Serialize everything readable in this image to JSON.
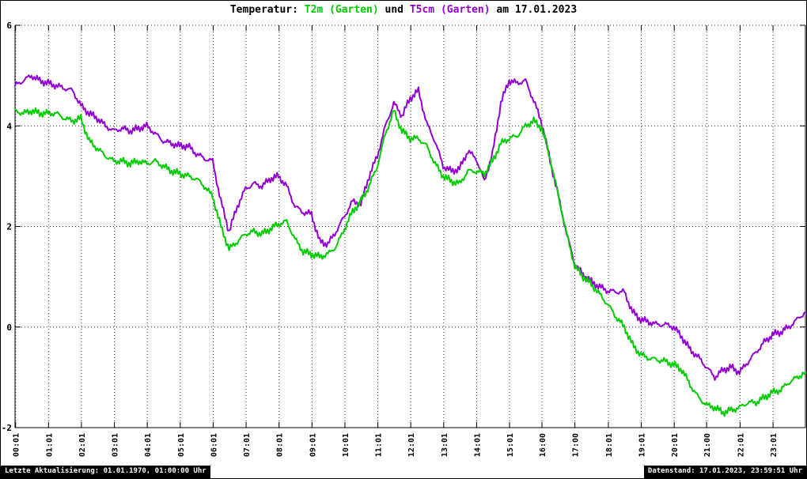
{
  "title": {
    "prefix": "Temperatur: ",
    "series1": "T2m (Garten)",
    "mid": " und ",
    "series2": "T5cm (Garten)",
    "suffix": " am 17.01.2023"
  },
  "footer": {
    "left": "Letzte Aktualisierung: 01.01.1970, 01:00:00 Uhr",
    "right": "Datenstand: 17.01.2023, 23:59:51 Uhr"
  },
  "colors": {
    "t2m": "#00cc00",
    "t5cm": "#9400d3",
    "axis": "#000000",
    "grid": "#333333",
    "background": "#ffffff"
  },
  "chart_data": {
    "type": "line",
    "title": "Temperatur: T2m (Garten) und T5cm (Garten) am 17.01.2023",
    "xlabel": "",
    "ylabel": "",
    "ylim": [
      -2,
      6
    ],
    "xlim_hours": [
      0,
      24
    ],
    "yticks": [
      -2,
      0,
      2,
      4,
      6
    ],
    "xtick_labels": [
      "00:01",
      "01:01",
      "02:01",
      "03:01",
      "04:01",
      "05:01",
      "06:01",
      "07:01",
      "08:01",
      "09:01",
      "10:01",
      "11:01",
      "12:01",
      "13:01",
      "14:01",
      "15:01",
      "16:00",
      "17:00",
      "18:01",
      "19:01",
      "20:01",
      "21:00",
      "22:01",
      "23:01"
    ],
    "grid": true,
    "legend_position": "in-title",
    "x_hours": [
      0,
      0.25,
      0.5,
      0.75,
      1,
      1.25,
      1.5,
      1.75,
      2,
      2.25,
      2.5,
      2.75,
      3,
      3.25,
      3.5,
      3.75,
      4,
      4.25,
      4.5,
      4.75,
      5,
      5.25,
      5.5,
      5.75,
      6,
      6.25,
      6.5,
      6.75,
      7,
      7.25,
      7.5,
      7.75,
      8,
      8.25,
      8.5,
      8.75,
      9,
      9.25,
      9.5,
      9.75,
      10,
      10.25,
      10.5,
      10.75,
      11,
      11.25,
      11.5,
      11.75,
      12,
      12.25,
      12.5,
      12.75,
      13,
      13.25,
      13.5,
      13.75,
      14,
      14.25,
      14.5,
      14.75,
      15,
      15.25,
      15.5,
      15.75,
      16,
      16.25,
      16.5,
      16.75,
      17,
      17.25,
      17.5,
      17.75,
      18,
      18.25,
      18.5,
      18.75,
      19,
      19.25,
      19.5,
      19.75,
      20,
      20.25,
      20.5,
      20.75,
      21,
      21.25,
      21.5,
      21.75,
      22,
      22.25,
      22.5,
      22.75,
      23,
      23.25,
      23.5,
      23.75,
      24
    ],
    "series": [
      {
        "name": "T2m (Garten)",
        "color": "#00cc00",
        "values": [
          4.3,
          4.25,
          4.3,
          4.25,
          4.25,
          4.25,
          4.15,
          4.1,
          4.15,
          3.7,
          3.55,
          3.4,
          3.3,
          3.3,
          3.25,
          3.3,
          3.25,
          3.3,
          3.2,
          3.1,
          3.05,
          3.0,
          2.95,
          2.8,
          2.6,
          2.0,
          1.55,
          1.7,
          1.85,
          1.9,
          1.85,
          1.95,
          2.05,
          2.1,
          1.75,
          1.5,
          1.45,
          1.4,
          1.45,
          1.6,
          1.95,
          2.3,
          2.5,
          2.8,
          3.2,
          3.85,
          4.3,
          3.9,
          3.75,
          3.75,
          3.6,
          3.25,
          3.0,
          2.9,
          2.85,
          3.1,
          3.1,
          3.05,
          3.3,
          3.65,
          3.75,
          3.8,
          4.0,
          4.1,
          3.95,
          3.35,
          2.6,
          1.85,
          1.2,
          1.0,
          0.85,
          0.65,
          0.45,
          0.2,
          0.0,
          -0.35,
          -0.55,
          -0.62,
          -0.65,
          -0.68,
          -0.75,
          -0.85,
          -1.15,
          -1.4,
          -1.55,
          -1.6,
          -1.7,
          -1.65,
          -1.6,
          -1.5,
          -1.5,
          -1.4,
          -1.3,
          -1.25,
          -1.1,
          -1.0,
          -0.9
        ]
      },
      {
        "name": "T5cm (Garten)",
        "color": "#9400d3",
        "values": [
          4.8,
          4.9,
          5.0,
          4.9,
          4.85,
          4.8,
          4.75,
          4.7,
          4.4,
          4.25,
          4.15,
          4.0,
          3.9,
          3.95,
          3.9,
          3.95,
          4.0,
          3.85,
          3.7,
          3.65,
          3.6,
          3.6,
          3.45,
          3.35,
          3.3,
          2.5,
          1.9,
          2.4,
          2.75,
          2.85,
          2.8,
          2.95,
          3.0,
          2.8,
          2.4,
          2.28,
          2.25,
          1.7,
          1.65,
          1.9,
          2.2,
          2.5,
          2.45,
          3.0,
          3.4,
          4.0,
          4.45,
          4.2,
          4.55,
          4.7,
          4.05,
          3.7,
          3.2,
          3.1,
          3.15,
          3.5,
          3.35,
          2.9,
          3.45,
          4.45,
          4.9,
          4.85,
          4.9,
          4.5,
          4.05,
          3.3,
          2.6,
          1.85,
          1.25,
          1.05,
          0.9,
          0.8,
          0.72,
          0.7,
          0.7,
          0.3,
          0.15,
          0.1,
          0.05,
          0.05,
          0.0,
          -0.2,
          -0.45,
          -0.6,
          -0.8,
          -1.0,
          -0.85,
          -0.8,
          -0.9,
          -0.7,
          -0.5,
          -0.3,
          -0.15,
          -0.1,
          0.0,
          0.15,
          0.3
        ]
      }
    ]
  }
}
